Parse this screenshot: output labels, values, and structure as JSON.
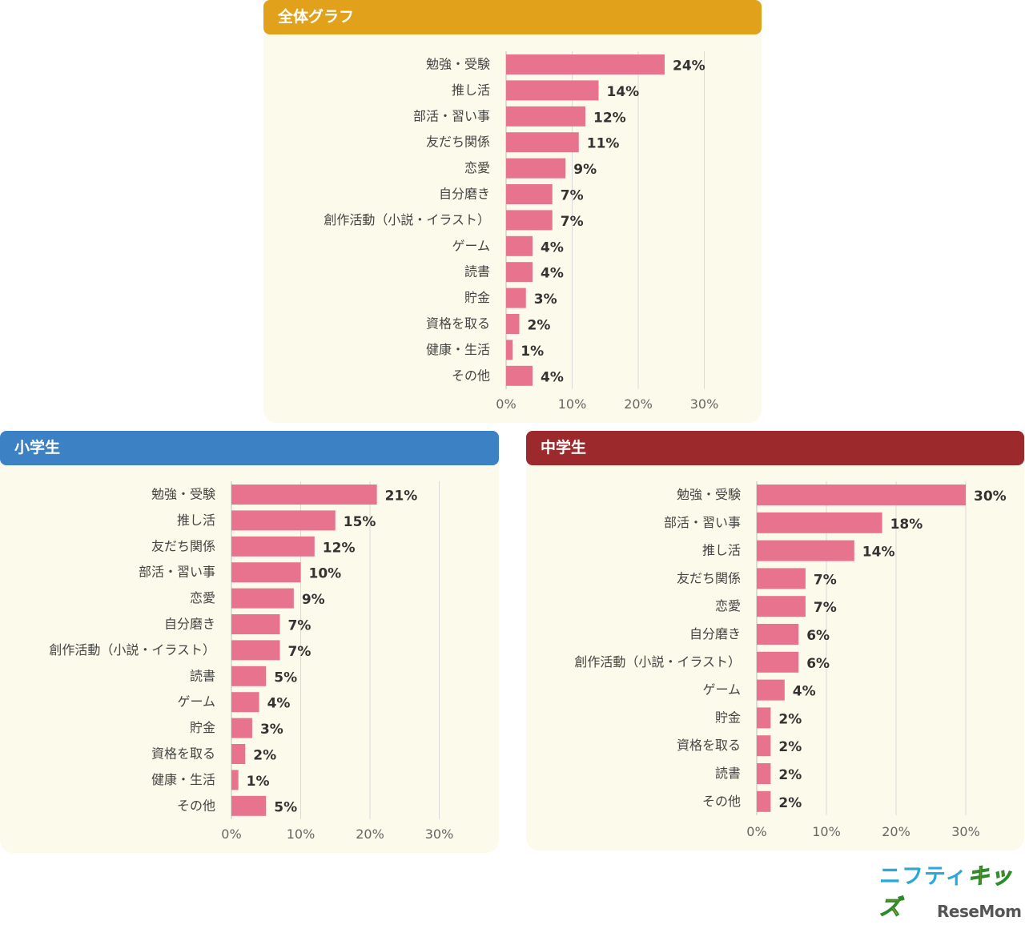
{
  "colors": {
    "bar": "#e8738f",
    "overall_header": "#e2a11b",
    "elementary_header": "#3b81c3",
    "junior_header": "#9c2a2c",
    "panel_bg": "#fcfaea",
    "grid": "#d9d9d9"
  },
  "logos": {
    "nifty": "ニフティ",
    "nifty_kids": "キッズ",
    "resemom": "ReseMom"
  },
  "chart_data": [
    {
      "type": "bar",
      "orientation": "horizontal",
      "title": "全体グラフ",
      "categories": [
        "勉強・受験",
        "推し活",
        "部活・習い事",
        "友だち関係",
        "恋愛",
        "自分磨き",
        "創作活動（小説・イラスト）",
        "ゲーム",
        "読書",
        "貯金",
        "資格を取る",
        "健康・生活",
        "その他"
      ],
      "values": [
        24,
        14,
        12,
        11,
        9,
        7,
        7,
        4,
        4,
        3,
        2,
        1,
        4
      ],
      "value_labels": [
        "24%",
        "14%",
        "12%",
        "11%",
        "9%",
        "7%",
        "7%",
        "4%",
        "4%",
        "3%",
        "2%",
        "1%",
        "4%"
      ],
      "xlim": [
        0,
        30
      ],
      "ticks": [
        "0%",
        "10%",
        "20%",
        "30%"
      ],
      "grid": true
    },
    {
      "type": "bar",
      "orientation": "horizontal",
      "title": "小学生",
      "categories": [
        "勉強・受験",
        "推し活",
        "友だち関係",
        "部活・習い事",
        "恋愛",
        "自分磨き",
        "創作活動（小説・イラスト）",
        "読書",
        "ゲーム",
        "貯金",
        "資格を取る",
        "健康・生活",
        "その他"
      ],
      "values": [
        21,
        15,
        12,
        10,
        9,
        7,
        7,
        5,
        4,
        3,
        2,
        1,
        5
      ],
      "value_labels": [
        "21%",
        "15%",
        "12%",
        "10%",
        "9%",
        "7%",
        "7%",
        "5%",
        "4%",
        "3%",
        "2%",
        "1%",
        "5%"
      ],
      "xlim": [
        0,
        30
      ],
      "ticks": [
        "0%",
        "10%",
        "20%",
        "30%"
      ],
      "grid": true
    },
    {
      "type": "bar",
      "orientation": "horizontal",
      "title": "中学生",
      "categories": [
        "勉強・受験",
        "部活・習い事",
        "推し活",
        "友だち関係",
        "恋愛",
        "自分磨き",
        "創作活動（小説・イラスト）",
        "ゲーム",
        "貯金",
        "資格を取る",
        "読書",
        "その他"
      ],
      "values": [
        30,
        18,
        14,
        7,
        7,
        6,
        6,
        4,
        2,
        2,
        2,
        2
      ],
      "value_labels": [
        "30%",
        "18%",
        "14%",
        "7%",
        "7%",
        "6%",
        "6%",
        "4%",
        "2%",
        "2%",
        "2%",
        "2%"
      ],
      "xlim": [
        0,
        30
      ],
      "ticks": [
        "0%",
        "10%",
        "20%",
        "30%"
      ],
      "grid": true
    }
  ]
}
